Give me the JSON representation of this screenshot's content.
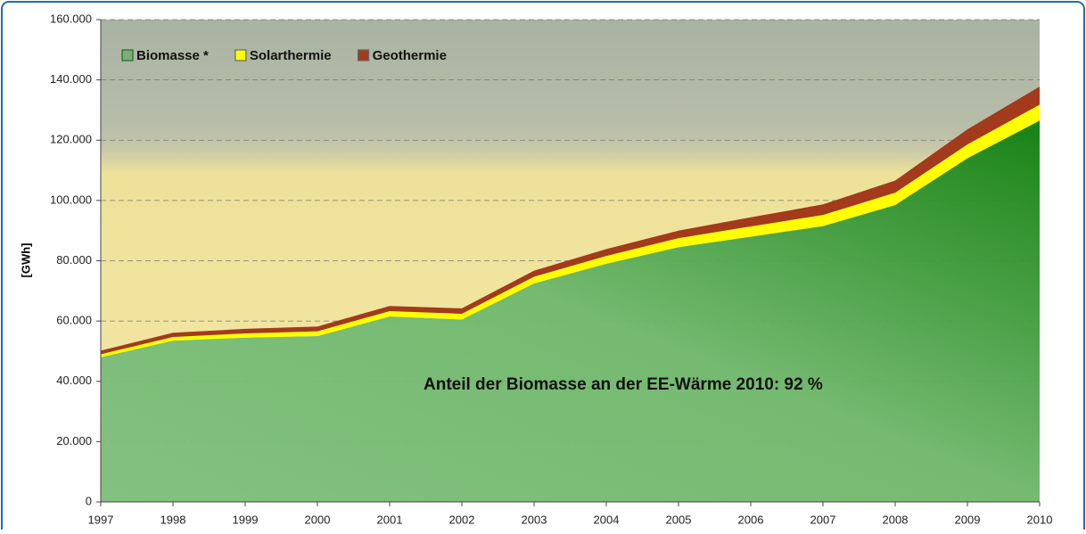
{
  "chart_data": {
    "type": "area",
    "y_label": "[GWh]",
    "annotation": "Anteil der Biomasse an der EE-Wärme 2010: 92 %",
    "x": [
      1997,
      1998,
      1999,
      2000,
      2001,
      2002,
      2003,
      2004,
      2005,
      2006,
      2007,
      2008,
      2009,
      2010
    ],
    "xlim": [
      1997,
      2010
    ],
    "xticks": [
      1997,
      1998,
      1999,
      2000,
      2001,
      2002,
      2003,
      2004,
      2005,
      2006,
      2007,
      2008,
      2009,
      2010
    ],
    "ylim": [
      0,
      160000
    ],
    "yticks": [
      0,
      {
        "value": 20000,
        "label": "20.000"
      },
      {
        "value": 40000,
        "label": "40.000"
      },
      {
        "value": 60000,
        "label": "60.000"
      },
      {
        "value": 80000,
        "label": "80.000"
      },
      {
        "value": 100000,
        "label": "100.000"
      },
      {
        "value": 120000,
        "label": "120.000"
      },
      {
        "value": 140000,
        "label": "140.000"
      },
      {
        "value": 160000,
        "label": "160.000"
      }
    ],
    "grid": true,
    "stacked": true,
    "legend": "top-left",
    "series": [
      {
        "name": "Biomasse *",
        "color": "#3a9a3a",
        "values": [
          48000,
          53500,
          54500,
          55000,
          61500,
          60500,
          72500,
          79000,
          84500,
          88000,
          91500,
          98500,
          114000,
          126500
        ]
      },
      {
        "name": "Solarthermie",
        "color": "#ffff00",
        "values": [
          1000,
          1200,
          1400,
          1600,
          1800,
          1900,
          2200,
          2600,
          3000,
          3400,
          3700,
          4100,
          4600,
          5300
        ]
      },
      {
        "name": "Geothermie",
        "color": "#a33a1c",
        "values": [
          1200,
          1400,
          1500,
          1600,
          1700,
          1800,
          2000,
          2300,
          2500,
          3000,
          3500,
          4000,
          5000,
          6000
        ]
      }
    ]
  }
}
